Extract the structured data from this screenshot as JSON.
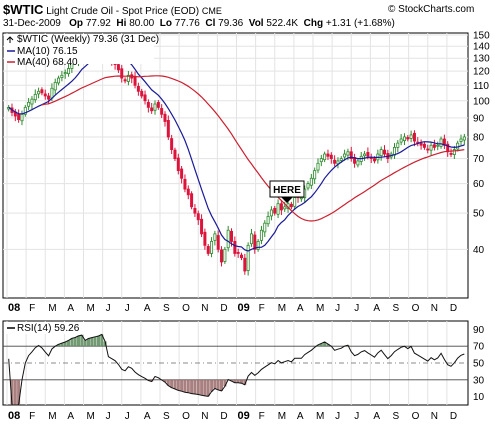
{
  "header": {
    "symbol": "$WTIC",
    "description": "Light Crude Oil - Spot Price (EOD)",
    "exchange": "CME",
    "watermark": "© StockCharts.com",
    "date": "31-Dec-2009",
    "op_label": "Op",
    "op_value": "77.92",
    "hi_label": "Hi",
    "hi_value": "80.00",
    "lo_label": "Lo",
    "lo_value": "77.76",
    "cl_label": "Cl",
    "cl_value": "79.36",
    "vol_label": "Vol",
    "vol_value": "522.4K",
    "chg_label": "Chg",
    "chg_value": "+1.31 (+1.68%)"
  },
  "legend": {
    "price_label": "$WTIC (Weekly) 79.36 (31 Dec)",
    "ma10_label": "MA(10) 76.15",
    "ma40_label": "MA(40) 68.40",
    "rsi_label": "RSI(14) 59.26"
  },
  "annotation": {
    "text": "HERE"
  },
  "colors": {
    "up": "#2e8b2e",
    "down": "#dc143c",
    "ma10": "#1a1a9a",
    "ma40": "#cc2030",
    "rsi_line": "#111111",
    "rsi_over": "#5a8a5a",
    "rsi_under": "#9a6a6a"
  },
  "chart_data": [
    {
      "type": "candlestick",
      "title": "$WTIC Light Crude Oil - Spot Price (EOD) CME",
      "scale": "log",
      "ylim": [
        30,
        150
      ],
      "y_ticks": [
        40,
        50,
        60,
        70,
        80,
        90,
        100,
        110,
        120,
        130,
        140,
        150
      ],
      "x_ticks": [
        "08",
        "F",
        "M",
        "A",
        "M",
        "J",
        "J",
        "A",
        "S",
        "O",
        "N",
        "D",
        "09",
        "F",
        "M",
        "A",
        "M",
        "J",
        "J",
        "A",
        "S",
        "O",
        "N",
        "D"
      ],
      "weekly_close": [
        96,
        93,
        91,
        89,
        92,
        96,
        99,
        101,
        104,
        106,
        105,
        103,
        101,
        108,
        112,
        115,
        117,
        119,
        122,
        126,
        128,
        132,
        134,
        131,
        135,
        137,
        139,
        141,
        145,
        141,
        129,
        127,
        125,
        121,
        115,
        113,
        117,
        115,
        110,
        106,
        103,
        100,
        96,
        94,
        98,
        96,
        92,
        88,
        80,
        74,
        70,
        65,
        62,
        58,
        56,
        52,
        50,
        48,
        44,
        41,
        39,
        42,
        44,
        40,
        37,
        40,
        45,
        42,
        39,
        39,
        38,
        35,
        41,
        44,
        40,
        42,
        45,
        47,
        49,
        51,
        50,
        53,
        51,
        52,
        53,
        52,
        55,
        55,
        55,
        58,
        60,
        62,
        65,
        68,
        70,
        72,
        71,
        70,
        68,
        69,
        70,
        72,
        73,
        70,
        68,
        69,
        71,
        72,
        71,
        70,
        69,
        72,
        74,
        72,
        70,
        72,
        75,
        77,
        79,
        80,
        79,
        81,
        78,
        77,
        76,
        75,
        74,
        76,
        75,
        76,
        79,
        76,
        73,
        72,
        74,
        77,
        79,
        80
      ],
      "series": [
        {
          "name": "MA(10)",
          "last": 76.15
        },
        {
          "name": "MA(40)",
          "last": 68.4
        }
      ],
      "annotations": [
        {
          "text": "HERE",
          "x": "2009-03"
        }
      ]
    },
    {
      "type": "line",
      "title": "RSI(14) 59.26",
      "ylim": [
        0,
        100
      ],
      "y_ticks": [
        10,
        30,
        50,
        70,
        90
      ],
      "reference_lines": [
        70,
        50,
        30
      ],
      "series": [
        {
          "name": "RSI(14)",
          "last": 59.26
        }
      ],
      "x_ticks": [
        "08",
        "F",
        "M",
        "A",
        "M",
        "J",
        "J",
        "A",
        "S",
        "O",
        "N",
        "D",
        "09",
        "F",
        "M",
        "A",
        "M",
        "J",
        "J",
        "A",
        "S",
        "O",
        "N",
        "D"
      ]
    }
  ]
}
